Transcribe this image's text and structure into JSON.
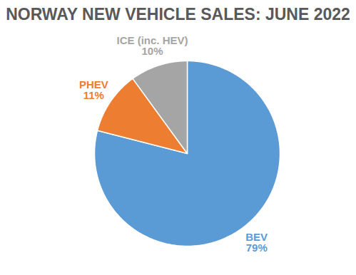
{
  "chart_data": {
    "type": "pie",
    "title": "NORWAY NEW VEHICLE SALES: JUNE 2022",
    "categories": [
      "BEV",
      "PHEV",
      "ICE (inc. HEV)"
    ],
    "values": [
      79,
      11,
      10
    ],
    "value_labels": [
      "79%",
      "11%",
      "10%"
    ],
    "colors": [
      "#5b9bd5",
      "#ed7d31",
      "#a5a5a5"
    ],
    "data_labels": true
  }
}
